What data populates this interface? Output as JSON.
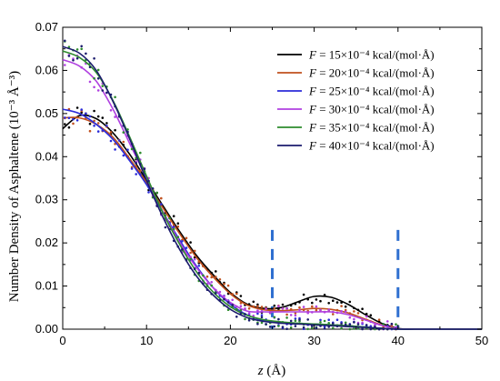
{
  "chart_data": {
    "type": "line",
    "title": "",
    "xlabel": "z (Å)",
    "xlabel_var": "z",
    "xlabel_unit": " (Å)",
    "ylabel": "Number Density of Asphaltene (10⁻³ Å⁻³)",
    "xlim": [
      0,
      50
    ],
    "ylim": [
      0,
      0.07
    ],
    "x_ticks": [
      "0",
      "10",
      "20",
      "30",
      "40",
      "50"
    ],
    "y_ticks": [
      "0.00",
      "0.01",
      "0.02",
      "0.03",
      "0.04",
      "0.05",
      "0.06",
      "0.07"
    ],
    "grid": false,
    "legend_position": "top-right",
    "x": [
      0,
      2,
      4,
      6,
      8,
      10,
      12,
      14,
      16,
      18,
      20,
      22,
      24,
      26,
      28,
      30,
      32,
      34,
      36,
      38,
      40,
      42,
      44,
      46,
      48,
      50
    ],
    "series": [
      {
        "name": "F = 15×10⁻⁴ kcal/(mol·Å)",
        "color": "#000000",
        "values": [
          0.0465,
          0.0495,
          0.0488,
          0.0455,
          0.0405,
          0.0345,
          0.0285,
          0.0225,
          0.017,
          0.0125,
          0.0085,
          0.0058,
          0.0048,
          0.005,
          0.0063,
          0.0076,
          0.0074,
          0.0058,
          0.0035,
          0.0014,
          0.0002,
          0,
          0,
          0,
          0,
          0
        ]
      },
      {
        "name": "F = 20×10⁻⁴ kcal/(mol·Å)",
        "color": "#c0501e",
        "values": [
          0.049,
          0.049,
          0.0475,
          0.0445,
          0.0395,
          0.034,
          0.028,
          0.022,
          0.0165,
          0.012,
          0.0082,
          0.0056,
          0.0045,
          0.0043,
          0.0045,
          0.0048,
          0.0046,
          0.0038,
          0.0024,
          0.001,
          0.0001,
          0,
          0,
          0,
          0,
          0
        ]
      },
      {
        "name": "F = 25×10⁻⁴ kcal/(mol·Å)",
        "color": "#2b2bd9",
        "values": [
          0.051,
          0.05,
          0.0475,
          0.044,
          0.039,
          0.0335,
          0.027,
          0.0205,
          0.0145,
          0.0095,
          0.0058,
          0.0033,
          0.002,
          0.0015,
          0.0013,
          0.0012,
          0.001,
          0.0008,
          0.0005,
          0.0002,
          0,
          0,
          0,
          0,
          0,
          0
        ]
      },
      {
        "name": "F = 30×10⁻⁴ kcal/(mol·Å)",
        "color": "#b040e0",
        "values": [
          0.0625,
          0.061,
          0.0575,
          0.051,
          0.043,
          0.035,
          0.027,
          0.02,
          0.0142,
          0.0095,
          0.0062,
          0.0042,
          0.004,
          0.004,
          0.004,
          0.004,
          0.004,
          0.0034,
          0.0022,
          0.0009,
          0.0001,
          0,
          0,
          0,
          0,
          0
        ]
      },
      {
        "name": "F = 35×10⁻⁴ kcal/(mol·Å)",
        "color": "#2e8b2e",
        "values": [
          0.0645,
          0.063,
          0.0595,
          0.053,
          0.0445,
          0.0355,
          0.0268,
          0.0195,
          0.0132,
          0.0085,
          0.0052,
          0.0032,
          0.0022,
          0.0017,
          0.0014,
          0.0012,
          0.001,
          0.0008,
          0.0005,
          0.0002,
          0,
          0,
          0,
          0,
          0,
          0
        ]
      },
      {
        "name": "F = 40×10⁻⁴ kcal/(mol·Å)",
        "color": "#1c1c6e",
        "values": [
          0.0655,
          0.064,
          0.06,
          0.0528,
          0.044,
          0.0345,
          0.0258,
          0.0183,
          0.0122,
          0.0078,
          0.0046,
          0.0027,
          0.0018,
          0.0014,
          0.0012,
          0.001,
          0.0008,
          0.0006,
          0.0004,
          0.0002,
          0,
          0,
          0,
          0,
          0,
          0
        ]
      }
    ],
    "annotations": [
      {
        "type": "vertical-dashed-line",
        "x": 25,
        "y_from": 0,
        "y_to": 0.023,
        "color": "#2f6fd0"
      },
      {
        "type": "vertical-dashed-line",
        "x": 40,
        "y_from": 0,
        "y_to": 0.023,
        "color": "#2f6fd0"
      }
    ]
  }
}
